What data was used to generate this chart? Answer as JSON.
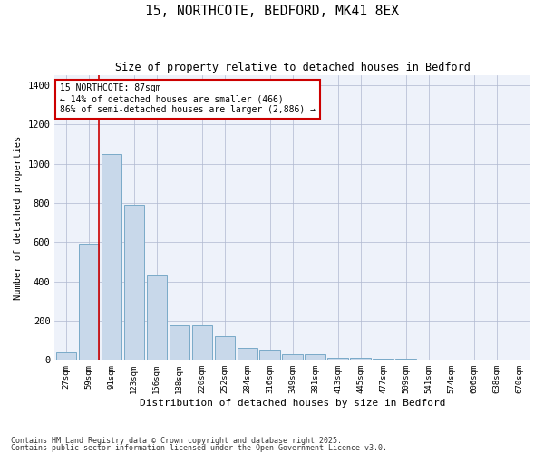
{
  "title1": "15, NORTHCOTE, BEDFORD, MK41 8EX",
  "title2": "Size of property relative to detached houses in Bedford",
  "xlabel": "Distribution of detached houses by size in Bedford",
  "ylabel": "Number of detached properties",
  "bar_color": "#c8d8ea",
  "bar_edge_color": "#7aaac8",
  "annotation_line_color": "#cc0000",
  "annotation_box_color": "#cc0000",
  "background_color": "#eef2fa",
  "categories": [
    "27sqm",
    "59sqm",
    "91sqm",
    "123sqm",
    "156sqm",
    "188sqm",
    "220sqm",
    "252sqm",
    "284sqm",
    "316sqm",
    "349sqm",
    "381sqm",
    "413sqm",
    "445sqm",
    "477sqm",
    "509sqm",
    "541sqm",
    "574sqm",
    "606sqm",
    "638sqm",
    "670sqm"
  ],
  "values": [
    40,
    590,
    1050,
    790,
    430,
    175,
    175,
    120,
    60,
    50,
    30,
    28,
    10,
    10,
    8,
    4,
    2,
    1,
    1,
    1,
    1
  ],
  "ylim": [
    0,
    1450
  ],
  "yticks": [
    0,
    200,
    400,
    600,
    800,
    1000,
    1200,
    1400
  ],
  "property_bin_index": 1,
  "annotation_text": "15 NORTHCOTE: 87sqm\n← 14% of detached houses are smaller (466)\n86% of semi-detached houses are larger (2,886) →",
  "footnote1": "Contains HM Land Registry data © Crown copyright and database right 2025.",
  "footnote2": "Contains public sector information licensed under the Open Government Licence v3.0."
}
